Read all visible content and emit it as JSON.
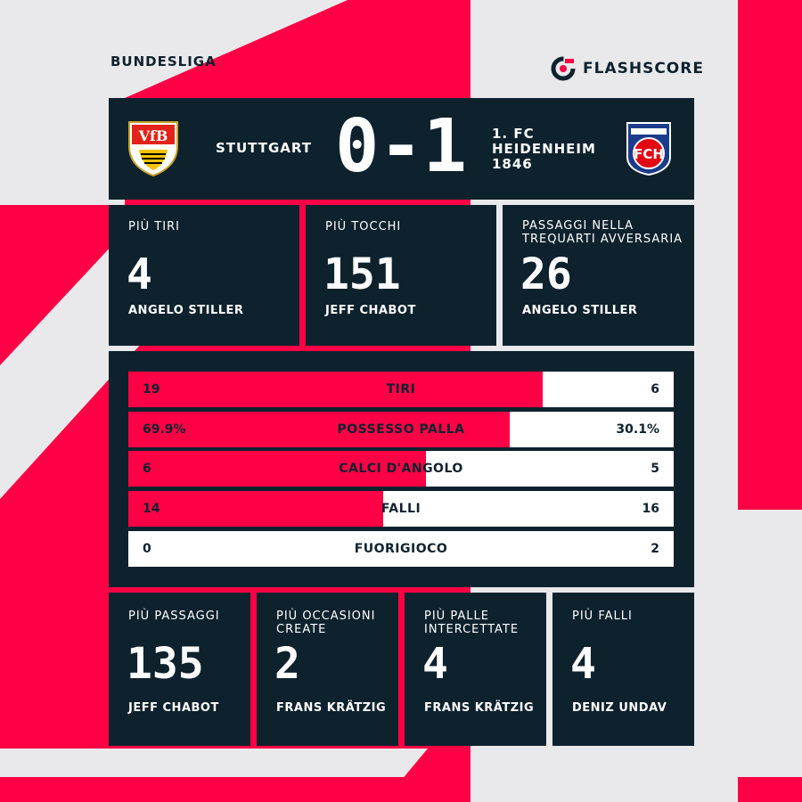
{
  "league": "BUNDESLIGA",
  "brand": {
    "name": "FLASHSCORE",
    "icon": "flashscore-logo-icon"
  },
  "colors": {
    "navy": "#0e222e",
    "red": "#ff0046",
    "background": "#e9e9eb",
    "white": "#ffffff"
  },
  "match": {
    "home": {
      "name": "STUTTGART",
      "crest": "vfb-stuttgart-crest",
      "crest_text": "VfB"
    },
    "away": {
      "name_line1": "1. FC",
      "name_line2": "HEIDENHEIM",
      "name_line3": "1846",
      "crest": "fc-heidenheim-crest",
      "crest_text": "FCH"
    },
    "score": "0-1"
  },
  "top_stats": [
    {
      "label": "PIÙ TIRI",
      "value": "4",
      "player": "ANGELO STILLER"
    },
    {
      "label": "PIÙ TOCCHI",
      "value": "151",
      "player": "JEFF CHABOT"
    },
    {
      "label": "PASSAGGI NELLA TREQUARTI AVVERSARIA",
      "value": "26",
      "player": "ANGELO STILLER"
    }
  ],
  "comparison": [
    {
      "label": "TIRI",
      "home": "19",
      "away": "6",
      "home_share": 0.76
    },
    {
      "label": "POSSESSO PALLA",
      "home": "69.9%",
      "away": "30.1%",
      "home_share": 0.699
    },
    {
      "label": "CALCI D'ANGOLO",
      "home": "6",
      "away": "5",
      "home_share": 0.545
    },
    {
      "label": "FALLI",
      "home": "14",
      "away": "16",
      "home_share": 0.467
    },
    {
      "label": "FUORIGIOCO",
      "home": "0",
      "away": "2",
      "home_share": 0
    }
  ],
  "bottom_stats": [
    {
      "label": "PIÙ PASSAGGI",
      "value": "135",
      "player": "JEFF CHABOT"
    },
    {
      "label": "PIÙ OCCASIONI CREATE",
      "value": "2",
      "player": "FRANS KRÄTZIG"
    },
    {
      "label": "PIÙ PALLE INTERCETTATE",
      "value": "4",
      "player": "FRANS KRÄTZIG"
    },
    {
      "label": "PIÙ FALLI",
      "value": "4",
      "player": "DENIZ UNDAV"
    }
  ]
}
